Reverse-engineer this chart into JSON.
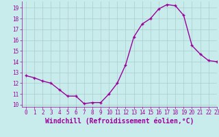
{
  "hours": [
    0,
    1,
    2,
    3,
    4,
    5,
    6,
    7,
    8,
    9,
    10,
    11,
    12,
    13,
    14,
    15,
    16,
    17,
    18,
    19,
    20,
    21,
    22,
    23
  ],
  "windchill": [
    12.7,
    12.5,
    12.2,
    12.0,
    11.4,
    10.8,
    10.8,
    10.1,
    10.2,
    10.2,
    11.0,
    12.0,
    13.7,
    16.3,
    17.5,
    18.0,
    18.9,
    19.3,
    19.2,
    18.3,
    15.5,
    14.7,
    14.1,
    14.0
  ],
  "line_color": "#990099",
  "marker": "+",
  "bg_color": "#c8ecec",
  "grid_color": "#aacccc",
  "xlabel": "Windchill (Refroidissement éolien,°C)",
  "ylim": [
    9.8,
    19.6
  ],
  "xlim": [
    -0.5,
    23
  ],
  "yticks": [
    10,
    11,
    12,
    13,
    14,
    15,
    16,
    17,
    18,
    19
  ],
  "xticks": [
    0,
    1,
    2,
    3,
    4,
    5,
    6,
    7,
    8,
    9,
    10,
    11,
    12,
    13,
    14,
    15,
    16,
    17,
    18,
    19,
    20,
    21,
    22,
    23
  ],
  "tick_fontsize": 5.5,
  "xlabel_fontsize": 7.0,
  "line_width": 1.0,
  "marker_size": 3.5,
  "marker_edge_width": 1.0
}
